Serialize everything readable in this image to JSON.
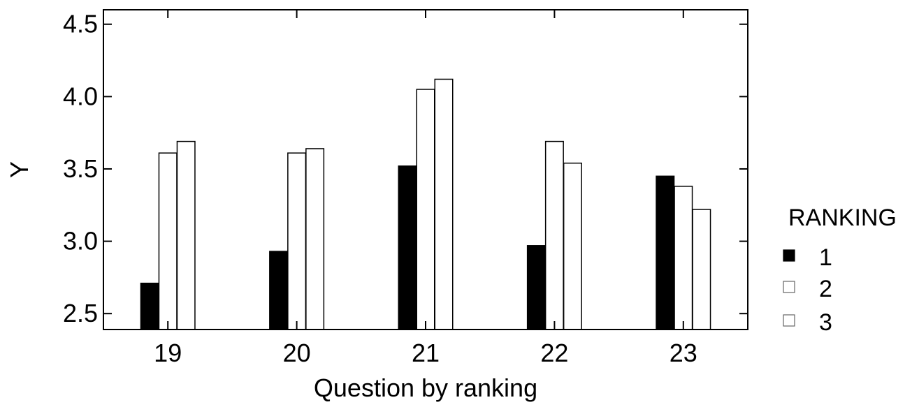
{
  "chart_data": {
    "type": "bar",
    "title": "",
    "xlabel": "Question by ranking",
    "ylabel": "Y",
    "categories": [
      "19",
      "20",
      "21",
      "22",
      "23"
    ],
    "series": [
      {
        "name": "1",
        "values": [
          2.71,
          2.93,
          3.52,
          2.97,
          3.45
        ],
        "color": "#000000"
      },
      {
        "name": "2",
        "values": [
          3.61,
          3.61,
          4.05,
          3.69,
          3.38
        ],
        "color": "#ffffff"
      },
      {
        "name": "3",
        "values": [
          3.69,
          3.64,
          4.12,
          3.54,
          3.22
        ],
        "color": "#ffffff"
      }
    ],
    "ylim": [
      2.39,
      4.6
    ],
    "yticks": [
      2.5,
      3.0,
      3.5,
      4.0,
      4.5
    ],
    "ytick_labels": [
      "2.5",
      "3.0",
      "3.5",
      "4.0",
      "4.5"
    ],
    "grid": false,
    "legend": {
      "title": "RANKING",
      "placement": "right",
      "entries": [
        "1",
        "2",
        "3"
      ]
    }
  }
}
